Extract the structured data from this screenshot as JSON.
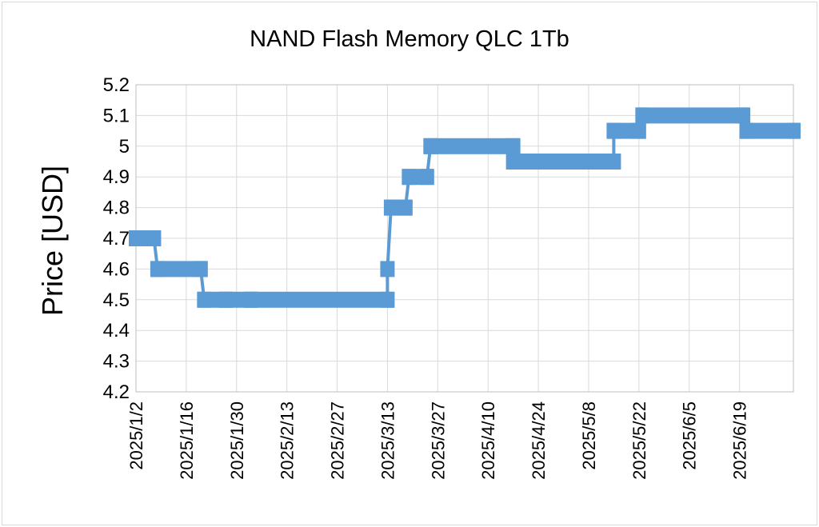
{
  "chart_data": {
    "type": "line",
    "title": "NAND Flash Memory QLC 1Tb",
    "ylabel": "Price [USD]",
    "xlabel": "",
    "ylim": [
      4.2,
      5.2
    ],
    "y_ticks": [
      "4.2",
      "4.3",
      "4.4",
      "4.5",
      "4.6",
      "4.7",
      "4.8",
      "4.9",
      "5",
      "5.1",
      "5.2"
    ],
    "x_tick_labels": [
      "2025/1/2",
      "2025/1/16",
      "2025/1/30",
      "2025/2/13",
      "2025/2/27",
      "2025/3/13",
      "2025/3/27",
      "2025/4/10",
      "2025/4/24",
      "2025/5/8",
      "2025/5/22",
      "2025/6/5",
      "2025/6/19"
    ],
    "grid": true,
    "series_color": "#5b9bd5",
    "series": [
      {
        "name": "",
        "points": [
          {
            "x": "2025/1/2",
            "y": 4.7
          },
          {
            "x": "2025/1/7",
            "y": 4.7
          },
          {
            "x": "2025/1/8",
            "y": 4.6
          },
          {
            "x": "2025/1/20",
            "y": 4.6
          },
          {
            "x": "2025/1/21",
            "y": 4.5
          },
          {
            "x": "2025/1/27",
            "y": 4.5
          },
          {
            "x": "2025/2/3",
            "y": 4.5
          },
          {
            "x": "2025/3/13",
            "y": 4.5
          },
          {
            "x": "2025/3/13",
            "y": 4.6
          },
          {
            "x": "2025/3/14",
            "y": 4.8
          },
          {
            "x": "2025/3/18",
            "y": 4.8
          },
          {
            "x": "2025/3/19",
            "y": 4.9
          },
          {
            "x": "2025/3/24",
            "y": 4.9
          },
          {
            "x": "2025/3/25",
            "y": 5.0
          },
          {
            "x": "2025/4/17",
            "y": 5.0
          },
          {
            "x": "2025/4/17",
            "y": 4.95
          },
          {
            "x": "2025/5/1",
            "y": 4.95
          },
          {
            "x": "2025/5/7",
            "y": 4.95
          },
          {
            "x": "2025/5/15",
            "y": 4.95
          },
          {
            "x": "2025/5/15",
            "y": 5.05
          },
          {
            "x": "2025/5/22",
            "y": 5.05
          },
          {
            "x": "2025/5/23",
            "y": 5.1
          },
          {
            "x": "2025/6/20",
            "y": 5.1
          },
          {
            "x": "2025/6/21",
            "y": 5.05
          },
          {
            "x": "2025/7/4",
            "y": 5.05
          }
        ]
      }
    ]
  }
}
